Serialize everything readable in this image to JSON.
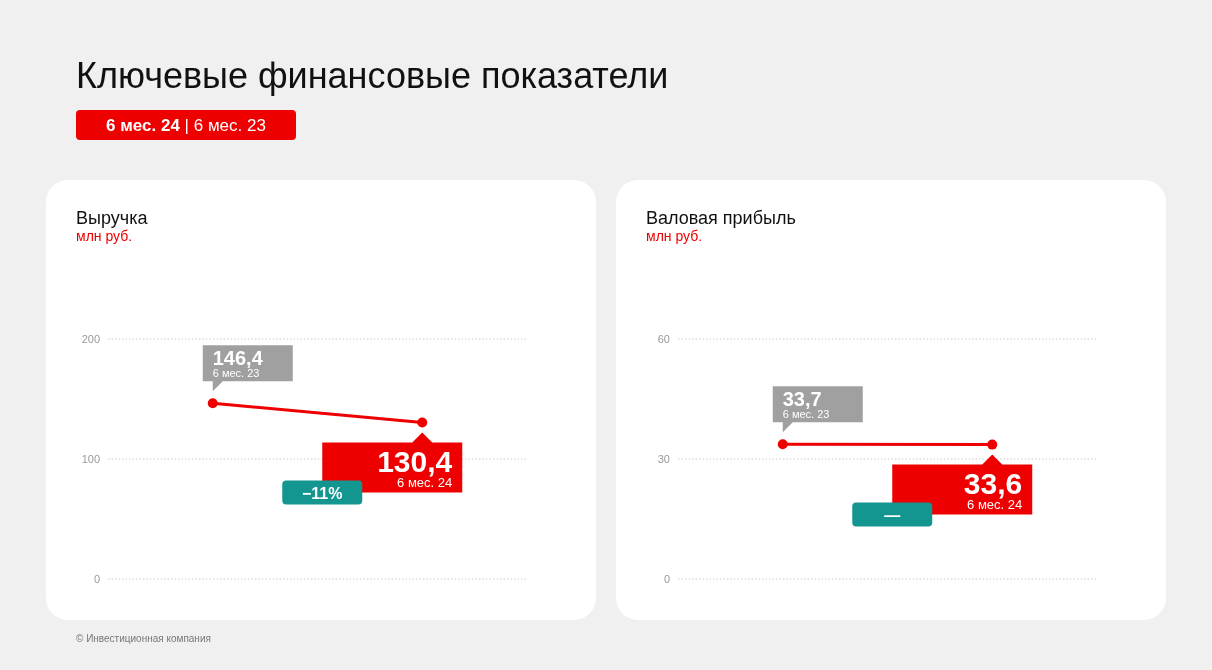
{
  "chart_data": [
    {
      "type": "other",
      "title": "Ключевые финансовые показатели",
      "annotations": [
        "6 мес. 24 | 6 мес. 23",
        "© Инвестиционная компания"
      ]
    },
    {
      "type": "line",
      "title": "Выручка",
      "subtitle": "млн руб.",
      "categories": [
        "6 мес. 23",
        "6 мес. 24"
      ],
      "values": [
        146.4,
        130.4
      ],
      "value_labels": [
        "146,4",
        "130,4"
      ],
      "color": "#ee0000",
      "ylim": [
        0,
        200
      ],
      "yticks": [
        0,
        100,
        200
      ],
      "grid": "y",
      "marker": "circle",
      "tick_labels": "y",
      "annotations": [
        "−11%"
      ]
    },
    {
      "type": "line",
      "title": "Валовая прибыль",
      "subtitle": "млн руб.",
      "categories": [
        "6 мес. 23",
        "6 мес. 24"
      ],
      "values": [
        33.7,
        33.6
      ],
      "value_labels": [
        "33,7",
        "33,6"
      ],
      "color": "#ee0000",
      "ylim": [
        0,
        60
      ],
      "yticks": [
        0,
        30,
        60
      ],
      "grid": "y",
      "marker": "circle",
      "tick_labels": "y",
      "annotations": [
        "—"
      ]
    }
  ]
}
